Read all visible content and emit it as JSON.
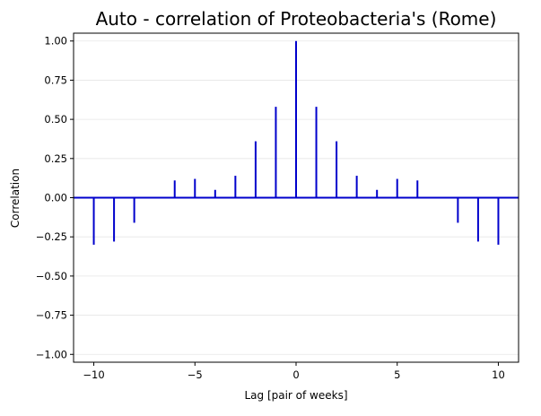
{
  "chart_data": {
    "type": "bar",
    "title": "Auto - correlation of Proteobacteria's (Rome)",
    "xlabel": "Lag [pair of weeks]",
    "ylabel": "Correlation",
    "xlim": [
      -11,
      11
    ],
    "ylim": [
      -1.05,
      1.05
    ],
    "x_ticks": [
      -10,
      -5,
      0,
      5,
      10
    ],
    "x_tick_labels": [
      "−10",
      "−5",
      "0",
      "5",
      "10"
    ],
    "y_ticks": [
      1.0,
      0.75,
      0.5,
      0.25,
      0.0,
      -0.25,
      -0.5,
      -0.75,
      -1.0
    ],
    "y_tick_labels": [
      "1.00",
      "0.75",
      "0.50",
      "0.25",
      "0.00",
      "−0.25",
      "−0.50",
      "−0.75",
      "−1.00"
    ],
    "grid": "horizontal",
    "series": [
      {
        "color": "#0000cc",
        "x": [
          -10,
          -9,
          -8,
          -7,
          -6,
          -5,
          -4,
          -3,
          -2,
          -1,
          0,
          1,
          2,
          3,
          4,
          5,
          6,
          7,
          8,
          9,
          10
        ],
        "values": [
          -0.3,
          -0.28,
          -0.16,
          0.0,
          0.11,
          0.12,
          0.05,
          0.14,
          0.36,
          0.58,
          1.0,
          0.58,
          0.36,
          0.14,
          0.05,
          0.12,
          0.11,
          0.0,
          -0.16,
          -0.28,
          -0.3
        ]
      }
    ]
  }
}
